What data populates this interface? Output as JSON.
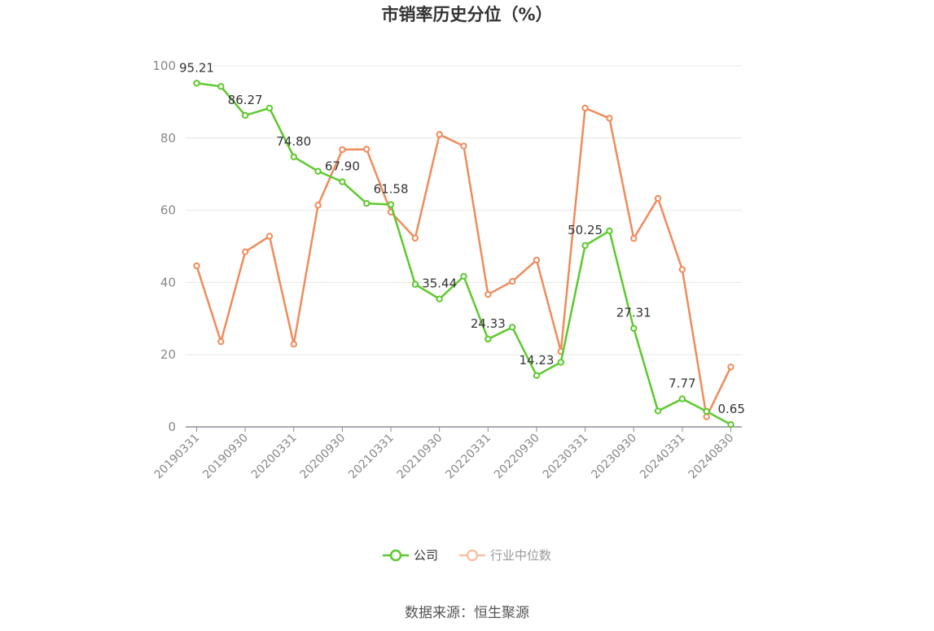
{
  "chart_data": {
    "type": "line",
    "title": "市销率历史分位（%）",
    "xlabel": "",
    "ylabel": "",
    "ylim": [
      0,
      100
    ],
    "yticks": [
      0,
      20,
      40,
      60,
      80,
      100
    ],
    "grid": true,
    "legend_position": "bottom-center",
    "x": [
      "20190331",
      "20190630",
      "20190930",
      "20191231",
      "20200331",
      "20200630",
      "20200930",
      "20201231",
      "20210331",
      "20210630",
      "20210930",
      "20211231",
      "20220331",
      "20220630",
      "20220930",
      "20221231",
      "20230331",
      "20230630",
      "20230930",
      "20231231",
      "20240331",
      "20240630",
      "20240830"
    ],
    "x_tick_labels": [
      "20190331",
      "20190930",
      "20200331",
      "20200930",
      "20210331",
      "20210930",
      "20220331",
      "20220930",
      "20230331",
      "20230930",
      "20240331",
      "20240830"
    ],
    "series": [
      {
        "name": "公司",
        "color": "#5cc92d",
        "values": [
          95.21,
          94.3,
          86.27,
          88.3,
          74.8,
          70.8,
          67.9,
          61.9,
          61.58,
          39.5,
          35.44,
          41.7,
          24.33,
          27.6,
          14.23,
          17.9,
          50.25,
          54.3,
          27.31,
          4.4,
          7.77,
          4.3,
          0.65
        ],
        "labels": [
          "95.21",
          "",
          "86.27",
          "",
          "74.80",
          "",
          "67.90",
          "",
          "61.58",
          "",
          "35.44",
          "",
          "24.33",
          "",
          "14.23",
          "",
          "50.25",
          "",
          "27.31",
          "",
          "7.77",
          "",
          "0.65"
        ]
      },
      {
        "name": "行业中位数",
        "color": "#f08b5b",
        "values": [
          44.6,
          23.6,
          48.5,
          52.8,
          22.9,
          61.4,
          76.8,
          76.9,
          59.5,
          52.3,
          81.0,
          77.8,
          36.7,
          40.3,
          46.2,
          20.9,
          88.3,
          85.5,
          52.2,
          63.3,
          43.6,
          2.8,
          16.6
        ]
      }
    ]
  },
  "footer": {
    "source": "数据来源：恒生聚源"
  }
}
